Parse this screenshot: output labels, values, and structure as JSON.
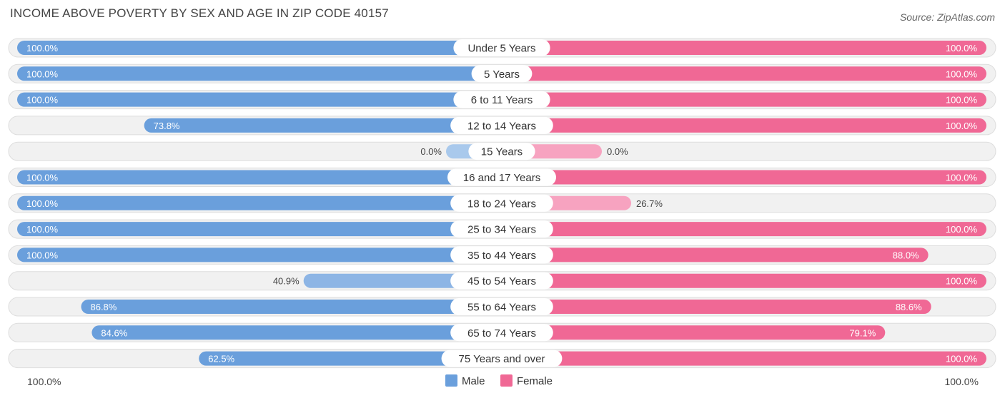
{
  "source": "Source: ZipAtlas.com",
  "chart_data": {
    "type": "bar",
    "orientation": "horizontal-diverging",
    "title": "INCOME ABOVE POVERTY BY SEX AND AGE IN ZIP CODE 40157",
    "categories": [
      "Under 5 Years",
      "5 Years",
      "6 to 11 Years",
      "12 to 14 Years",
      "15 Years",
      "16 and 17 Years",
      "18 to 24 Years",
      "25 to 34 Years",
      "35 to 44 Years",
      "45 to 54 Years",
      "55 to 64 Years",
      "65 to 74 Years",
      "75 Years and over"
    ],
    "series": [
      {
        "name": "Male",
        "color": "#6a9fdc",
        "values": [
          100.0,
          100.0,
          100.0,
          73.8,
          0.0,
          100.0,
          100.0,
          100.0,
          100.0,
          40.9,
          86.8,
          84.6,
          62.5
        ],
        "labels": [
          "100.0%",
          "100.0%",
          "100.0%",
          "73.8%",
          "0.0%",
          "100.0%",
          "100.0%",
          "100.0%",
          "100.0%",
          "40.9%",
          "86.8%",
          "84.6%",
          "62.5%"
        ]
      },
      {
        "name": "Female",
        "color": "#f06895",
        "values": [
          100.0,
          100.0,
          100.0,
          100.0,
          0.0,
          100.0,
          26.7,
          100.0,
          88.0,
          100.0,
          88.6,
          79.1,
          100.0
        ],
        "labels": [
          "100.0%",
          "100.0%",
          "100.0%",
          "100.0%",
          "0.0%",
          "100.0%",
          "26.7%",
          "100.0%",
          "88.0%",
          "100.0%",
          "88.6%",
          "79.1%",
          "100.0%"
        ]
      }
    ],
    "xlim": [
      -100,
      100
    ],
    "axis_left_label": "100.0%",
    "axis_right_label": "100.0%",
    "legend": [
      "Male",
      "Female"
    ],
    "legend_position": "bottom-center"
  }
}
